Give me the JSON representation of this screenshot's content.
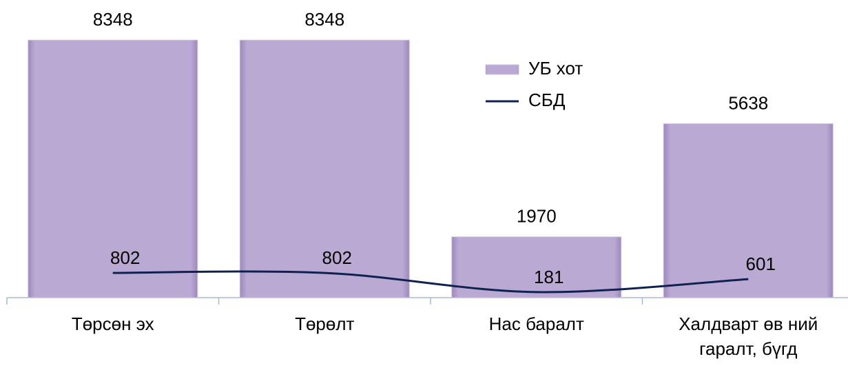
{
  "chart_data": {
    "type": "bar",
    "categories": [
      "Төрсөн эх",
      "Төрөлт",
      "Нас баралт",
      "Халдварт өв ний гаралт, бүгд"
    ],
    "series": [
      {
        "name": "УБ хот",
        "type": "bar",
        "color": "#b9a9d3",
        "values": [
          8348,
          8348,
          1970,
          5638
        ]
      },
      {
        "name": "СБД",
        "type": "line",
        "color": "#0f2150",
        "values": [
          802,
          802,
          181,
          601
        ]
      }
    ],
    "ylim": [
      0,
      9000
    ],
    "legend": "top-right"
  }
}
